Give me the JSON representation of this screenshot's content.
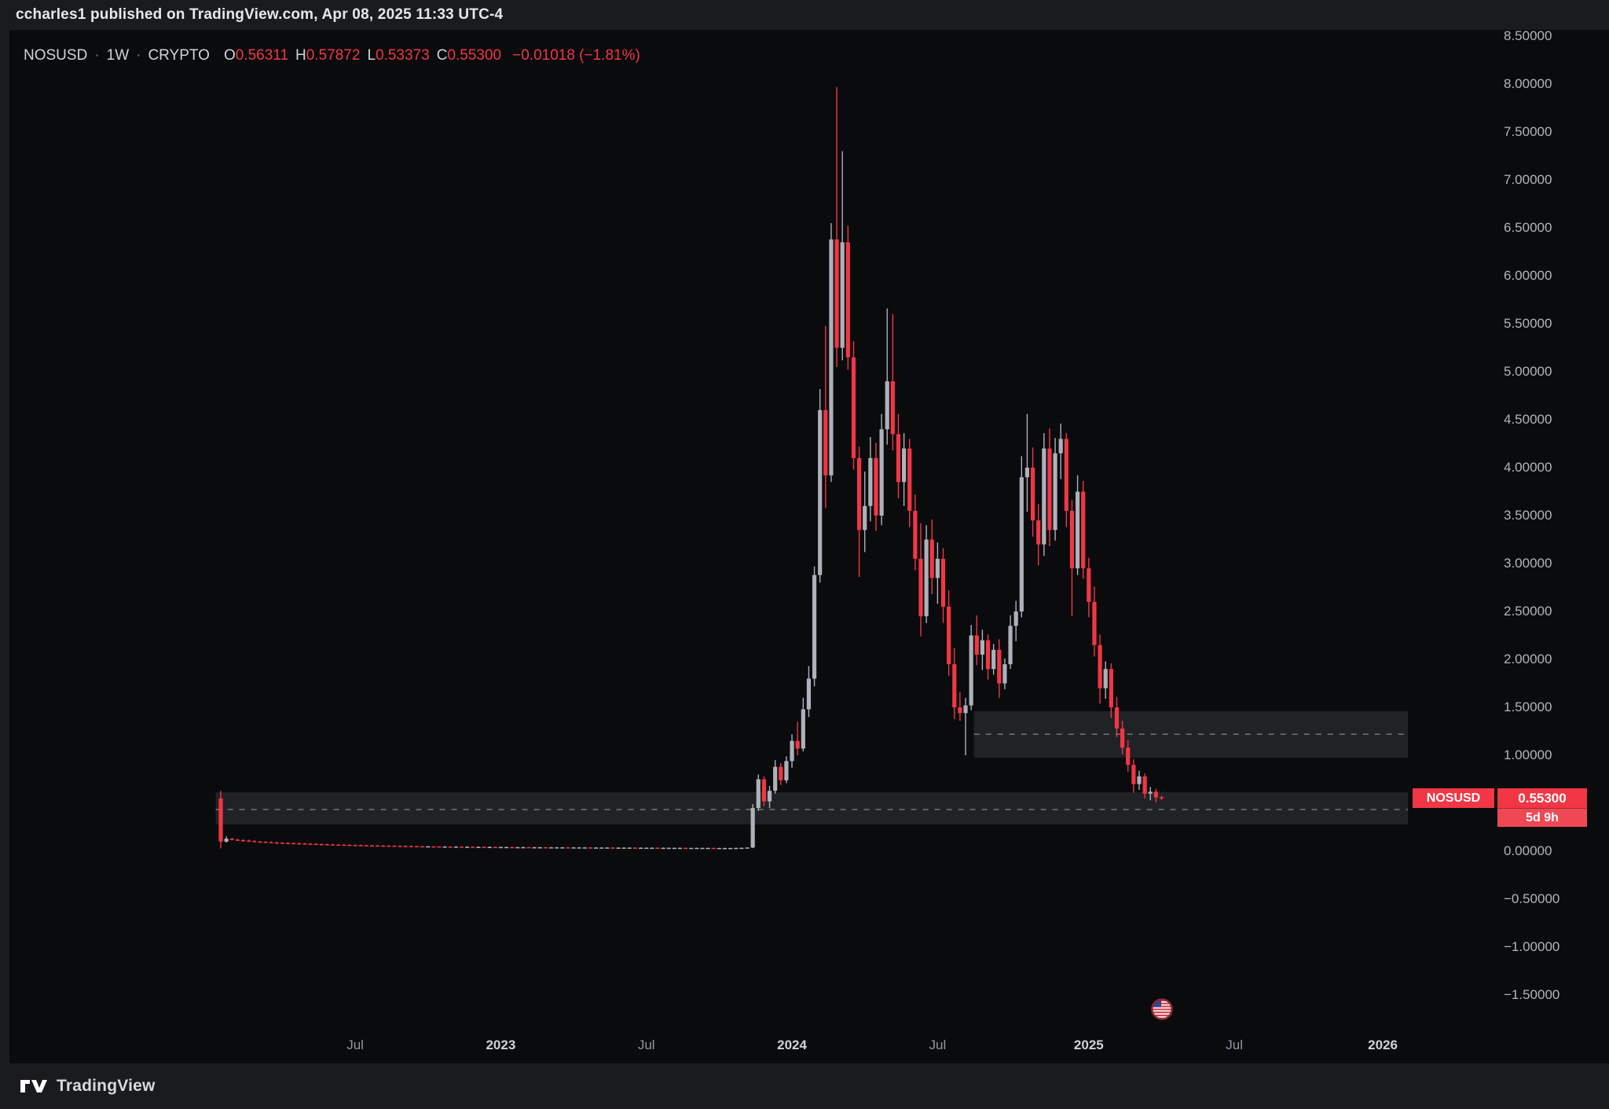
{
  "page": {
    "publish_bar": "ccharles1 published on TradingView.com, Apr 08, 2025 11:33 UTC-4",
    "brand": "TradingView"
  },
  "legend": {
    "symbol": "NOSUSD",
    "dot": "·",
    "interval": "1W",
    "market": "CRYPTO",
    "o_label": "O",
    "o_value": "0.56311",
    "h_label": "H",
    "h_value": "0.57872",
    "l_label": "L",
    "l_value": "0.53373",
    "c_label": "C",
    "c_value": "0.55300",
    "change": "−0.01018 (−1.81%)"
  },
  "price_tag": {
    "symbol": "NOSUSD",
    "price": "0.55300",
    "countdown": "5d 9h"
  },
  "colors": {
    "up": "#aeb1ba",
    "down": "#f23645",
    "chart_bg": "#0a0b0d",
    "panel_bg": "#191b1f",
    "text": "#d1d4dc",
    "muted": "#9598a1",
    "zone_fill": "rgba(150,156,166,0.16)",
    "zone_line": "#6b7079",
    "tag_red": "#f23645"
  },
  "chart_data": {
    "type": "candlestick",
    "symbol": "NOSUSD",
    "timeframe": "1W",
    "market": "CRYPTO",
    "current": {
      "open": 0.56311,
      "high": 0.57872,
      "low": 0.53373,
      "close": 0.553,
      "change": "−0.01018",
      "change_pct": "−1.81%"
    },
    "y_axis": {
      "min": -1.75,
      "max": 8.6,
      "step": 0.5,
      "grid": false,
      "ticks": [
        {
          "value": 8.5,
          "label": "8.50000"
        },
        {
          "value": 8.0,
          "label": "8.00000"
        },
        {
          "value": 7.5,
          "label": "7.50000"
        },
        {
          "value": 7.0,
          "label": "7.00000"
        },
        {
          "value": 6.5,
          "label": "6.50000"
        },
        {
          "value": 6.0,
          "label": "6.00000"
        },
        {
          "value": 5.5,
          "label": "5.50000"
        },
        {
          "value": 5.0,
          "label": "5.00000"
        },
        {
          "value": 4.5,
          "label": "4.50000"
        },
        {
          "value": 4.0,
          "label": "4.00000"
        },
        {
          "value": 3.5,
          "label": "3.50000"
        },
        {
          "value": 3.0,
          "label": "3.00000"
        },
        {
          "value": 2.5,
          "label": "2.50000"
        },
        {
          "value": 2.0,
          "label": "2.00000"
        },
        {
          "value": 1.5,
          "label": "1.50000"
        },
        {
          "value": 1.0,
          "label": "1.00000"
        },
        {
          "value": 0.5,
          "label": "0.50000"
        },
        {
          "value": 0.0,
          "label": "0.00000"
        },
        {
          "value": -0.5,
          "label": "−0.50000"
        },
        {
          "value": -1.0,
          "label": "−1.00000"
        },
        {
          "value": -1.5,
          "label": "−1.50000"
        }
      ]
    },
    "x_axis": {
      "ticks": [
        {
          "label": "Jul",
          "week": 24,
          "major": false
        },
        {
          "label": "2023",
          "week": 50,
          "major": true
        },
        {
          "label": "Jul",
          "week": 76,
          "major": false
        },
        {
          "label": "2024",
          "week": 102,
          "major": true
        },
        {
          "label": "Jul",
          "week": 128,
          "major": false
        },
        {
          "label": "2025",
          "week": 155,
          "major": true
        },
        {
          "label": "Jul",
          "week": 181,
          "major": false
        },
        {
          "label": "2026",
          "week": 207.5,
          "major": true
        }
      ]
    },
    "zones": [
      {
        "name": "resistance-zone",
        "week_start": 134.5,
        "week_end": 212,
        "price_top": 1.46,
        "price_bottom": 0.975,
        "price_mid": 1.22
      },
      {
        "name": "support-zone",
        "week_start": -0.9,
        "week_end": 212,
        "price_top": 0.615,
        "price_bottom": 0.28,
        "price_mid": 0.435
      }
    ],
    "event_marker": {
      "week": 168,
      "price": -1.65,
      "icon": "us-flag"
    },
    "candles": [
      [
        0.55,
        0.63,
        0.03,
        0.1
      ],
      [
        0.1,
        0.155,
        0.09,
        0.13
      ],
      [
        0.13,
        0.14,
        0.112,
        0.12
      ],
      [
        0.12,
        0.13,
        0.106,
        0.115
      ],
      [
        0.115,
        0.125,
        0.1,
        0.11
      ],
      [
        0.11,
        0.12,
        0.096,
        0.105
      ],
      [
        0.105,
        0.115,
        0.092,
        0.1
      ],
      [
        0.1,
        0.108,
        0.09,
        0.097
      ],
      [
        0.097,
        0.105,
        0.086,
        0.094
      ],
      [
        0.094,
        0.102,
        0.083,
        0.091
      ],
      [
        0.091,
        0.099,
        0.08,
        0.088
      ],
      [
        0.088,
        0.095,
        0.078,
        0.086
      ],
      [
        0.086,
        0.093,
        0.076,
        0.084
      ],
      [
        0.084,
        0.091,
        0.074,
        0.082
      ],
      [
        0.082,
        0.089,
        0.072,
        0.08
      ],
      [
        0.08,
        0.087,
        0.07,
        0.078
      ],
      [
        0.078,
        0.085,
        0.068,
        0.076
      ],
      [
        0.076,
        0.083,
        0.066,
        0.074
      ],
      [
        0.074,
        0.081,
        0.064,
        0.072
      ],
      [
        0.072,
        0.079,
        0.062,
        0.07
      ],
      [
        0.07,
        0.077,
        0.061,
        0.068
      ],
      [
        0.068,
        0.075,
        0.06,
        0.067
      ],
      [
        0.067,
        0.073,
        0.059,
        0.066
      ],
      [
        0.066,
        0.072,
        0.057,
        0.064
      ],
      [
        0.064,
        0.07,
        0.056,
        0.063
      ],
      [
        0.063,
        0.069,
        0.054,
        0.061
      ],
      [
        0.061,
        0.067,
        0.053,
        0.06
      ],
      [
        0.06,
        0.066,
        0.052,
        0.059
      ],
      [
        0.059,
        0.065,
        0.051,
        0.058
      ],
      [
        0.058,
        0.064,
        0.05,
        0.057
      ],
      [
        0.057,
        0.063,
        0.049,
        0.056
      ],
      [
        0.056,
        0.062,
        0.048,
        0.055
      ],
      [
        0.055,
        0.06,
        0.047,
        0.054
      ],
      [
        0.054,
        0.059,
        0.046,
        0.053
      ],
      [
        0.053,
        0.058,
        0.045,
        0.052
      ],
      [
        0.052,
        0.057,
        0.044,
        0.051
      ],
      [
        0.051,
        0.056,
        0.044,
        0.05
      ],
      [
        0.05,
        0.055,
        0.043,
        0.05
      ],
      [
        0.05,
        0.054,
        0.043,
        0.049
      ],
      [
        0.049,
        0.053,
        0.042,
        0.048
      ],
      [
        0.048,
        0.053,
        0.042,
        0.048
      ],
      [
        0.048,
        0.052,
        0.041,
        0.047
      ],
      [
        0.047,
        0.052,
        0.041,
        0.047
      ],
      [
        0.047,
        0.051,
        0.04,
        0.046
      ],
      [
        0.046,
        0.051,
        0.04,
        0.046
      ],
      [
        0.046,
        0.05,
        0.039,
        0.045
      ],
      [
        0.045,
        0.05,
        0.039,
        0.045
      ],
      [
        0.045,
        0.049,
        0.038,
        0.044
      ],
      [
        0.044,
        0.049,
        0.038,
        0.044
      ],
      [
        0.044,
        0.048,
        0.037,
        0.043
      ],
      [
        0.043,
        0.048,
        0.037,
        0.043
      ],
      [
        0.043,
        0.047,
        0.037,
        0.043
      ],
      [
        0.043,
        0.047,
        0.036,
        0.042
      ],
      [
        0.042,
        0.046,
        0.036,
        0.042
      ],
      [
        0.042,
        0.046,
        0.036,
        0.042
      ],
      [
        0.042,
        0.045,
        0.035,
        0.041
      ],
      [
        0.041,
        0.045,
        0.035,
        0.041
      ],
      [
        0.041,
        0.045,
        0.035,
        0.041
      ],
      [
        0.041,
        0.044,
        0.034,
        0.04
      ],
      [
        0.04,
        0.044,
        0.034,
        0.04
      ],
      [
        0.04,
        0.044,
        0.034,
        0.04
      ],
      [
        0.04,
        0.043,
        0.034,
        0.04
      ],
      [
        0.04,
        0.043,
        0.033,
        0.039
      ],
      [
        0.039,
        0.043,
        0.033,
        0.039
      ],
      [
        0.039,
        0.042,
        0.033,
        0.039
      ],
      [
        0.039,
        0.042,
        0.033,
        0.039
      ],
      [
        0.039,
        0.042,
        0.032,
        0.038
      ],
      [
        0.038,
        0.042,
        0.032,
        0.038
      ],
      [
        0.038,
        0.041,
        0.032,
        0.038
      ],
      [
        0.038,
        0.041,
        0.032,
        0.038
      ],
      [
        0.038,
        0.041,
        0.031,
        0.037
      ],
      [
        0.037,
        0.041,
        0.031,
        0.037
      ],
      [
        0.037,
        0.04,
        0.031,
        0.037
      ],
      [
        0.037,
        0.04,
        0.031,
        0.037
      ],
      [
        0.037,
        0.04,
        0.03,
        0.036
      ],
      [
        0.036,
        0.04,
        0.03,
        0.036
      ],
      [
        0.036,
        0.039,
        0.03,
        0.036
      ],
      [
        0.036,
        0.039,
        0.03,
        0.036
      ],
      [
        0.036,
        0.039,
        0.029,
        0.035
      ],
      [
        0.035,
        0.039,
        0.029,
        0.035
      ],
      [
        0.035,
        0.038,
        0.029,
        0.035
      ],
      [
        0.035,
        0.038,
        0.029,
        0.035
      ],
      [
        0.035,
        0.038,
        0.029,
        0.035
      ],
      [
        0.035,
        0.038,
        0.028,
        0.034
      ],
      [
        0.034,
        0.037,
        0.028,
        0.034
      ],
      [
        0.034,
        0.037,
        0.028,
        0.034
      ],
      [
        0.034,
        0.037,
        0.028,
        0.034
      ],
      [
        0.034,
        0.037,
        0.028,
        0.034
      ],
      [
        0.034,
        0.036,
        0.027,
        0.033
      ],
      [
        0.033,
        0.036,
        0.027,
        0.033
      ],
      [
        0.033,
        0.036,
        0.027,
        0.033
      ],
      [
        0.033,
        0.036,
        0.027,
        0.033
      ],
      [
        0.033,
        0.037,
        0.028,
        0.034
      ],
      [
        0.034,
        0.038,
        0.029,
        0.035
      ],
      [
        0.035,
        0.04,
        0.03,
        0.038
      ],
      [
        0.038,
        0.49,
        0.032,
        0.45
      ],
      [
        0.45,
        0.8,
        0.42,
        0.75
      ],
      [
        0.75,
        0.78,
        0.47,
        0.52
      ],
      [
        0.52,
        0.68,
        0.45,
        0.63
      ],
      [
        0.63,
        0.95,
        0.6,
        0.88
      ],
      [
        0.88,
        0.92,
        0.69,
        0.74
      ],
      [
        0.74,
        0.99,
        0.71,
        0.94
      ],
      [
        0.94,
        1.22,
        0.87,
        1.15
      ],
      [
        1.15,
        1.35,
        1.0,
        1.07
      ],
      [
        1.07,
        1.6,
        1.04,
        1.48
      ],
      [
        1.48,
        1.93,
        1.4,
        1.8
      ],
      [
        1.8,
        2.97,
        1.72,
        2.88
      ],
      [
        2.88,
        4.82,
        2.8,
        4.6
      ],
      [
        4.6,
        5.48,
        3.58,
        3.92
      ],
      [
        3.92,
        6.55,
        3.85,
        6.38
      ],
      [
        6.38,
        7.97,
        5.05,
        5.25
      ],
      [
        5.25,
        7.3,
        5.12,
        6.35
      ],
      [
        6.35,
        6.52,
        5.02,
        5.15
      ],
      [
        5.15,
        5.32,
        3.98,
        4.1
      ],
      [
        4.1,
        4.22,
        2.86,
        3.35
      ],
      [
        3.35,
        3.96,
        3.12,
        3.6
      ],
      [
        3.6,
        4.32,
        3.44,
        4.1
      ],
      [
        4.1,
        4.26,
        3.34,
        3.5
      ],
      [
        3.5,
        4.56,
        3.4,
        4.4
      ],
      [
        4.4,
        5.66,
        4.24,
        4.9
      ],
      [
        4.9,
        5.6,
        4.18,
        4.35
      ],
      [
        4.35,
        4.56,
        3.68,
        3.85
      ],
      [
        3.85,
        4.36,
        3.6,
        4.2
      ],
      [
        4.2,
        4.3,
        3.38,
        3.55
      ],
      [
        3.55,
        3.72,
        2.93,
        3.05
      ],
      [
        3.05,
        3.42,
        2.24,
        2.45
      ],
      [
        2.45,
        3.4,
        2.38,
        3.25
      ],
      [
        3.25,
        3.46,
        2.68,
        2.85
      ],
      [
        2.85,
        3.22,
        2.58,
        3.05
      ],
      [
        3.05,
        3.16,
        2.38,
        2.55
      ],
      [
        2.55,
        2.72,
        1.83,
        1.95
      ],
      [
        1.95,
        2.12,
        1.38,
        1.5
      ],
      [
        1.5,
        1.66,
        1.36,
        1.44
      ],
      [
        1.44,
        1.6,
        1.0,
        1.52
      ],
      [
        1.52,
        2.36,
        1.47,
        2.25
      ],
      [
        2.25,
        2.46,
        1.94,
        2.05
      ],
      [
        2.05,
        2.31,
        1.89,
        2.2
      ],
      [
        2.2,
        2.26,
        1.79,
        1.9
      ],
      [
        1.9,
        2.16,
        1.84,
        2.1
      ],
      [
        2.1,
        2.21,
        1.6,
        1.75
      ],
      [
        1.75,
        2.01,
        1.69,
        1.95
      ],
      [
        1.95,
        2.46,
        1.9,
        2.35
      ],
      [
        2.35,
        2.61,
        2.19,
        2.5
      ],
      [
        2.5,
        4.12,
        2.44,
        3.9
      ],
      [
        3.9,
        4.56,
        3.54,
        4.0
      ],
      [
        4.0,
        4.21,
        3.28,
        3.45
      ],
      [
        3.45,
        3.62,
        2.98,
        3.2
      ],
      [
        3.2,
        4.36,
        3.08,
        4.2
      ],
      [
        4.2,
        4.41,
        3.18,
        3.35
      ],
      [
        3.35,
        4.31,
        3.24,
        4.15
      ],
      [
        4.15,
        4.46,
        3.88,
        4.3
      ],
      [
        4.3,
        4.36,
        3.38,
        3.55
      ],
      [
        3.55,
        3.66,
        2.45,
        2.95
      ],
      [
        2.95,
        3.92,
        2.88,
        3.75
      ],
      [
        3.75,
        3.86,
        2.84,
        2.95
      ],
      [
        2.95,
        3.06,
        2.44,
        2.6
      ],
      [
        2.6,
        2.76,
        2.03,
        2.15
      ],
      [
        2.15,
        2.26,
        1.54,
        1.7
      ],
      [
        1.7,
        1.98,
        1.59,
        1.9
      ],
      [
        1.9,
        1.96,
        1.39,
        1.5
      ],
      [
        1.5,
        1.61,
        1.19,
        1.28
      ],
      [
        1.28,
        1.36,
        1.01,
        1.08
      ],
      [
        1.08,
        1.16,
        0.83,
        0.9
      ],
      [
        0.9,
        0.96,
        0.61,
        0.7
      ],
      [
        0.7,
        0.84,
        0.64,
        0.78
      ],
      [
        0.78,
        0.81,
        0.55,
        0.6
      ],
      [
        0.6,
        0.67,
        0.53,
        0.62
      ],
      [
        0.62,
        0.65,
        0.51,
        0.56
      ],
      [
        0.56311,
        0.57872,
        0.53373,
        0.553
      ]
    ]
  }
}
